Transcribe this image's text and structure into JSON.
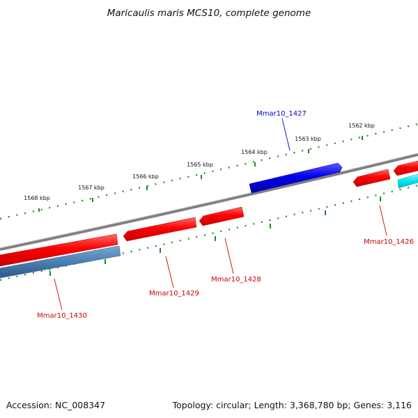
{
  "title": "Maricaulis maris MCS10, complete genome",
  "footer": {
    "accession": "Accession: NC_008347",
    "summary": "Topology: circular; Length: 3,368,780 bp; Genes: 3,116"
  },
  "scale_labels": [
    "1568 kbp",
    "1567 kbp",
    "1566 kbp",
    "1565 kbp",
    "1564 kbp",
    "1563 kbp",
    "1562 kbp"
  ],
  "genes": [
    {
      "label": "Mmar10_1427",
      "strand": "forward",
      "color": "#0000ee"
    },
    {
      "label": "Mmar10_1426",
      "strand": "reverse",
      "color": "#cc0000"
    },
    {
      "label": "Mmar10_1428",
      "strand": "reverse",
      "color": "#cc0000"
    },
    {
      "label": "Mmar10_1429",
      "strand": "reverse",
      "color": "#cc0000"
    },
    {
      "label": "Mmar10_1430",
      "strand": "reverse",
      "color": "#cc0000"
    }
  ],
  "colors": {
    "backbone": "#808080",
    "tick": "#1a8a1a",
    "reverse_gene": "#ff0000",
    "forward_gene": "#0000ee",
    "rna_feature": "#00e5ee",
    "steelblue_feature": "#4a7eb0",
    "reverse_label": "#cc0000",
    "forward_label": "#0000cc"
  }
}
